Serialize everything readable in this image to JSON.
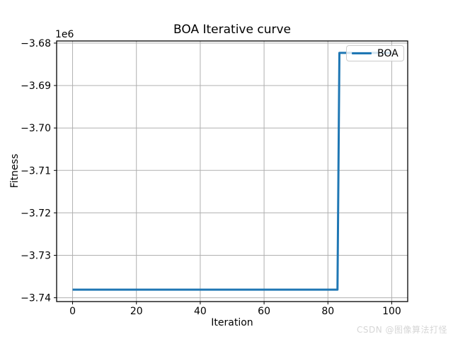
{
  "figure": {
    "title": "BOA Iterative curve",
    "xlabel": "Iteration",
    "ylabel": "Fitness",
    "offset_text": "1e6",
    "watermark": "CSDN @图像算法打怪"
  },
  "colors": {
    "line": "#1f77b4",
    "grid": "#b0b0b0",
    "spine": "#000000",
    "tick_text": "#000000",
    "legend_border": "#cccccc",
    "watermark": "#d6d6d6"
  },
  "chart_data": {
    "type": "line",
    "title": "BOA Iterative curve",
    "xlabel": "Iteration",
    "ylabel": "Fitness",
    "y_offset_factor": "1e6",
    "xlim": [
      -5,
      105
    ],
    "ylim": [
      -3740900,
      -3679500
    ],
    "xticks": [
      0,
      20,
      40,
      60,
      80,
      100
    ],
    "xtick_labels": [
      "0",
      "20",
      "40",
      "60",
      "80",
      "100"
    ],
    "yticks": [
      -3740000,
      -3730000,
      -3720000,
      -3710000,
      -3700000,
      -3690000,
      -3680000
    ],
    "ytick_labels": [
      "−3.74",
      "−3.73",
      "−3.72",
      "−3.71",
      "−3.70",
      "−3.69",
      "−3.68"
    ],
    "grid": true,
    "legend": {
      "label": "BOA",
      "loc": "upper right"
    },
    "series": [
      {
        "name": "BOA",
        "color": "#1f77b4",
        "linewidth": 3,
        "x": [
          0,
          83,
          83.6,
          100
        ],
        "y": [
          -3738100,
          -3738100,
          -3682300,
          -3682300
        ]
      }
    ]
  }
}
